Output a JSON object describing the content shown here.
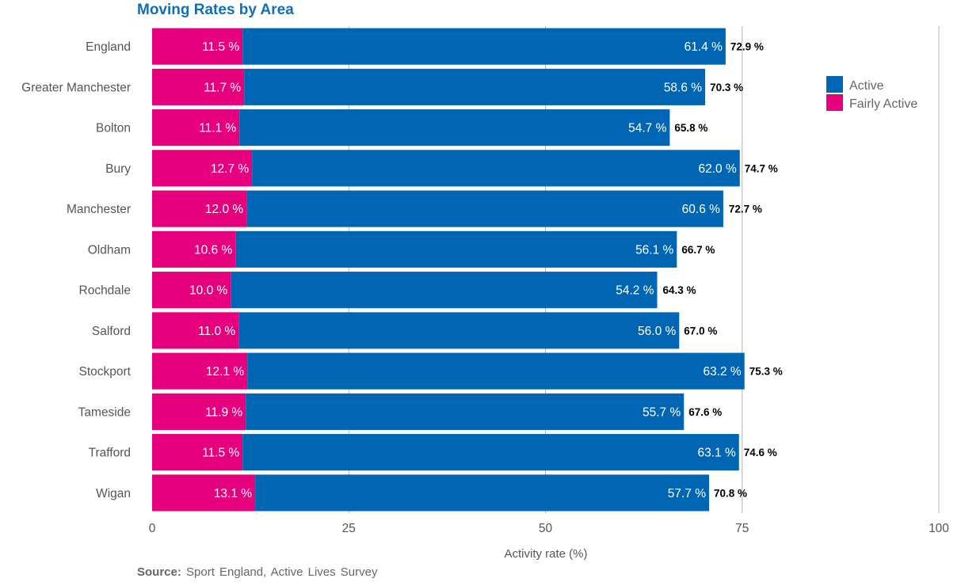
{
  "chart_data": {
    "type": "bar",
    "orientation": "horizontal",
    "stacked": true,
    "title": "Moving Rates by Area",
    "xlabel": "Activity rate (%)",
    "ylabel": "",
    "xlim": [
      0,
      100
    ],
    "xticks": [
      "0",
      "25",
      "50",
      "75",
      "100"
    ],
    "grid": true,
    "legend_position": "top-right",
    "categories": [
      "England",
      "Greater Manchester",
      "Bolton",
      "Bury",
      "Manchester",
      "Oldham",
      "Rochdale",
      "Salford",
      "Stockport",
      "Tameside",
      "Trafford",
      "Wigan"
    ],
    "series": [
      {
        "name": "Fairly Active",
        "color": "#e6007e",
        "values": [
          11.5,
          11.7,
          11.1,
          12.7,
          12.0,
          10.6,
          10.0,
          11.0,
          12.1,
          11.9,
          11.5,
          13.1
        ],
        "labels": [
          "11.5 %",
          "11.7 %",
          "11.1 %",
          "12.7 %",
          "12.0 %",
          "10.6 %",
          "10.0 %",
          "11.0 %",
          "12.1 %",
          "11.9 %",
          "11.5 %",
          "13.1 %"
        ]
      },
      {
        "name": "Active",
        "color": "#0066b3",
        "values": [
          61.4,
          58.6,
          54.7,
          62.0,
          60.6,
          56.1,
          54.2,
          56.0,
          63.2,
          55.7,
          63.1,
          57.7
        ],
        "labels": [
          "61.4 %",
          "58.6 %",
          "54.7 %",
          "62.0 %",
          "60.6 %",
          "56.1 %",
          "54.2 %",
          "56.0 %",
          "63.2 %",
          "55.7 %",
          "63.1 %",
          "57.7 %"
        ]
      }
    ],
    "totals": [
      72.9,
      70.3,
      65.8,
      74.7,
      72.7,
      66.7,
      64.3,
      67.0,
      75.3,
      67.6,
      74.6,
      70.8
    ],
    "total_labels": [
      "72.9 %",
      "70.3 %",
      "65.8 %",
      "74.7 %",
      "72.7 %",
      "66.7 %",
      "64.3 %",
      "67.0 %",
      "75.3 %",
      "67.6 %",
      "74.6 %",
      "70.8 %"
    ],
    "legend": [
      "Active",
      "Fairly Active"
    ],
    "source_label": "Source:",
    "source_text": "Sport England, Active Lives Survey"
  }
}
